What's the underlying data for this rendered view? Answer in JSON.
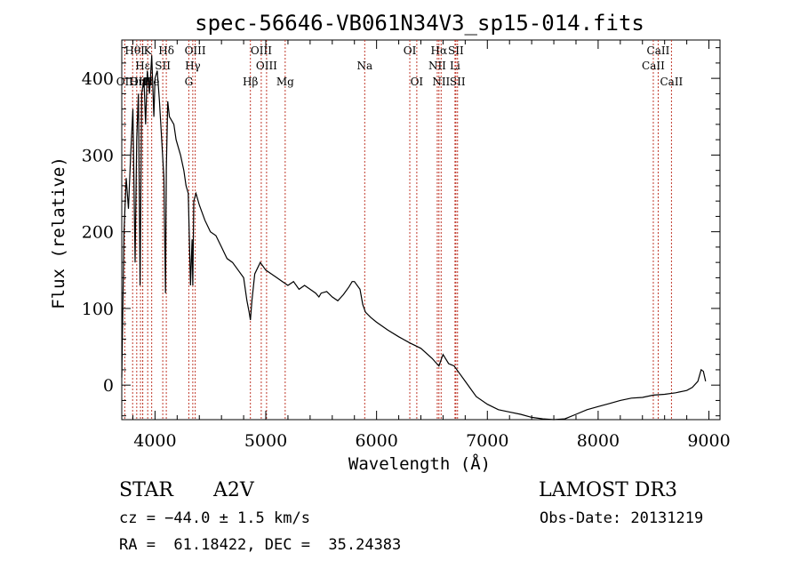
{
  "chart_data": {
    "type": "line",
    "title": "spec-56646-VB061N34V3_sp15-014.fits",
    "xlabel": "Wavelength (Å)",
    "ylabel": "Flux (relative)",
    "xlim": [
      3700,
      9100
    ],
    "ylim": [
      -45,
      450
    ],
    "xticks": [
      4000,
      5000,
      6000,
      7000,
      8000,
      9000
    ],
    "xtick_labels": [
      "4000",
      "5000",
      "6000",
      "7000",
      "8000",
      "9000"
    ],
    "yticks": [
      0,
      100,
      200,
      300,
      400
    ],
    "ytick_labels": [
      "0",
      "100",
      "200",
      "300",
      "400"
    ],
    "grid": false,
    "series": [
      {
        "name": "spectrum",
        "x": [
          3700,
          3720,
          3740,
          3760,
          3780,
          3800,
          3820,
          3835,
          3850,
          3865,
          3880,
          3890,
          3900,
          3915,
          3930,
          3950,
          3970,
          3990,
          4000,
          4020,
          4040,
          4060,
          4080,
          4095,
          4102,
          4115,
          4130,
          4150,
          4170,
          4190,
          4210,
          4230,
          4260,
          4280,
          4300,
          4320,
          4335,
          4341,
          4350,
          4370,
          4400,
          4450,
          4500,
          4550,
          4600,
          4650,
          4700,
          4750,
          4800,
          4830,
          4850,
          4861,
          4875,
          4900,
          4950,
          5000,
          5050,
          5100,
          5150,
          5200,
          5250,
          5300,
          5350,
          5400,
          5450,
          5480,
          5500,
          5550,
          5600,
          5650,
          5700,
          5750,
          5780,
          5800,
          5850,
          5875,
          5900,
          5950,
          6000,
          6100,
          6200,
          6300,
          6400,
          6500,
          6563,
          6600,
          6650,
          6700,
          6750,
          6800,
          6850,
          6900,
          7000,
          7100,
          7200,
          7300,
          7400,
          7500,
          7600,
          7700,
          7800,
          7900,
          8000,
          8100,
          8200,
          8300,
          8400,
          8500,
          8600,
          8700,
          8800,
          8850,
          8900,
          8930,
          8950,
          8970
        ],
        "y": [
          10,
          200,
          270,
          230,
          300,
          360,
          160,
          320,
          380,
          130,
          380,
          390,
          400,
          340,
          410,
          380,
          430,
          350,
          400,
          410,
          370,
          320,
          270,
          120,
          280,
          370,
          350,
          345,
          340,
          320,
          310,
          300,
          280,
          260,
          250,
          130,
          190,
          130,
          240,
          250,
          235,
          215,
          200,
          195,
          180,
          165,
          160,
          150,
          140,
          110,
          95,
          85,
          110,
          145,
          160,
          150,
          145,
          140,
          135,
          130,
          135,
          125,
          130,
          125,
          120,
          115,
          120,
          122,
          115,
          110,
          118,
          128,
          135,
          135,
          125,
          105,
          95,
          88,
          82,
          72,
          63,
          55,
          48,
          35,
          25,
          40,
          28,
          25,
          15,
          5,
          -5,
          -15,
          -25,
          -32,
          -35,
          -38,
          -42,
          -44,
          -46,
          -44,
          -38,
          -32,
          -28,
          -24,
          -20,
          -17,
          -16,
          -13,
          -12,
          -10,
          -7,
          -3,
          5,
          20,
          18,
          5
        ]
      }
    ],
    "annotations": [
      {
        "label": "OII",
        "x": 3727,
        "row": 2
      },
      {
        "label": "Hθ",
        "x": 3798,
        "row": 0
      },
      {
        "label": "OIII",
        "x": 3869,
        "row": 2
      },
      {
        "label": "I",
        "x": 3889,
        "row": 0
      },
      {
        "label": "Hε",
        "x": 3889,
        "row": 1
      },
      {
        "label": "K",
        "x": 3934,
        "row": 0
      },
      {
        "label": "Hη",
        "x": 3835,
        "row": 2
      },
      {
        "label": "He",
        "x": 3970,
        "row": 2
      },
      {
        "label": "SII",
        "x": 4070,
        "row": 1
      },
      {
        "label": "Hδ",
        "x": 4102,
        "row": 0
      },
      {
        "label": "OIII",
        "x": 4363,
        "row": 0
      },
      {
        "label": "Hγ",
        "x": 4341,
        "row": 1
      },
      {
        "label": "G",
        "x": 4305,
        "row": 2
      },
      {
        "label": "Hβ",
        "x": 4861,
        "row": 2
      },
      {
        "label": "OIII",
        "x": 4959,
        "row": 0
      },
      {
        "label": "OIII",
        "x": 5007,
        "row": 1
      },
      {
        "label": "Mg",
        "x": 5175,
        "row": 2
      },
      {
        "label": "Na",
        "x": 5893,
        "row": 1
      },
      {
        "label": "OI",
        "x": 6300,
        "row": 0
      },
      {
        "label": "OI",
        "x": 6363,
        "row": 2
      },
      {
        "label": "Hα",
        "x": 6563,
        "row": 0
      },
      {
        "label": "SII",
        "x": 6716,
        "row": 0
      },
      {
        "label": "NII",
        "x": 6548,
        "row": 1
      },
      {
        "label": "Li",
        "x": 6708,
        "row": 1
      },
      {
        "label": "NII",
        "x": 6583,
        "row": 2
      },
      {
        "label": "SII",
        "x": 6731,
        "row": 2
      },
      {
        "label": "CaII",
        "x": 8542,
        "row": 0
      },
      {
        "label": "CaII",
        "x": 8498,
        "row": 1
      },
      {
        "label": "CaII",
        "x": 8662,
        "row": 2
      }
    ]
  },
  "info": {
    "object_class": "STAR",
    "subclass": "A2V",
    "survey": "LAMOST DR3",
    "cz": "cz = −44.0 ± 1.5 km/s",
    "obs_date": "Obs-Date: 20131219",
    "coords": "RA =  61.18422, DEC =  35.24383"
  }
}
